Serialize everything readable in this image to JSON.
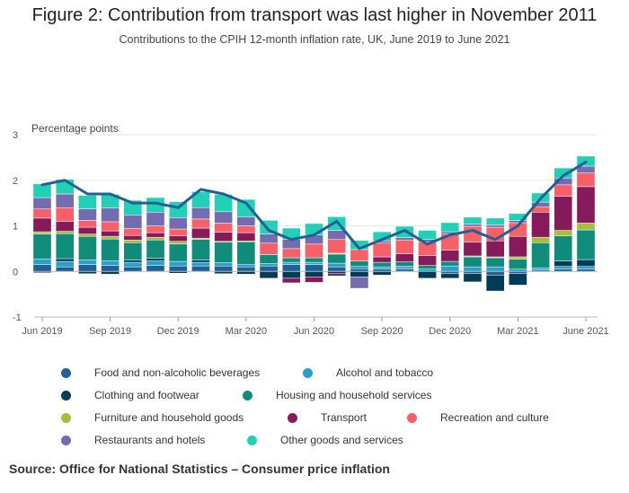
{
  "title": "Figure 2: Contribution from transport was last higher in November 2011",
  "subtitle": "Contributions to the CPIH 12-month inflation rate, UK, June 2019 to June 2021",
  "source": "Source: Office for National Statistics – Consumer price inflation",
  "chart_data": {
    "type": "bar",
    "stacked": true,
    "overlay_line": "CPIH 12-month rate",
    "ylabel": "Percentage points",
    "ylim": [
      -1,
      3
    ],
    "yticks": [
      -1,
      0,
      1,
      2,
      3
    ],
    "categories": [
      "Jun 2019",
      "Jul 2019",
      "Aug 2019",
      "Sep 2019",
      "Oct 2019",
      "Nov 2019",
      "Dec 2019",
      "Jan 2020",
      "Feb 2020",
      "Mar 2020",
      "Apr 2020",
      "May 2020",
      "Jun 2020",
      "Jul 2020",
      "Aug 2020",
      "Sep 2020",
      "Oct 2020",
      "Nov 2020",
      "Dec 2020",
      "Jan 2021",
      "Feb 2021",
      "Mar 2021",
      "Apr 2021",
      "May 2021",
      "Jun 2021"
    ],
    "xtick_labels": [
      "Jun 2019",
      "Sep 2019",
      "Dec 2019",
      "Mar 2020",
      "Jun 2020",
      "Sep 2020",
      "Dec 2020",
      "Mar 2021",
      "June 2021"
    ],
    "xtick_indices": [
      0,
      3,
      6,
      9,
      12,
      15,
      18,
      21,
      24
    ],
    "series": [
      {
        "name": "Food and non-alcoholic beverages",
        "color": "#206095",
        "values": [
          0.15,
          0.1,
          0.15,
          0.13,
          0.1,
          0.13,
          0.12,
          0.12,
          0.12,
          0.1,
          0.12,
          0.15,
          0.15,
          0.1,
          0.06,
          0.05,
          0.05,
          0.0,
          -0.05,
          -0.05,
          -0.08,
          -0.05,
          0.03,
          0.05,
          0.05
        ]
      },
      {
        "name": "Alcohol and tobacco",
        "color": "#27a0cc",
        "values": [
          0.12,
          0.12,
          0.1,
          0.1,
          0.1,
          0.1,
          0.1,
          0.08,
          0.07,
          0.05,
          0.05,
          0.05,
          0.05,
          0.08,
          0.05,
          0.05,
          0.04,
          0.05,
          0.12,
          0.1,
          0.1,
          0.05,
          0.05,
          0.06,
          0.06
        ]
      },
      {
        "name": "Clothing and footwear",
        "color": "#003c57",
        "values": [
          -0.03,
          0.06,
          -0.05,
          -0.06,
          0.05,
          0.06,
          -0.04,
          0.05,
          -0.05,
          -0.06,
          -0.15,
          -0.15,
          -0.12,
          -0.05,
          -0.12,
          -0.08,
          0.02,
          -0.15,
          -0.1,
          -0.18,
          -0.35,
          -0.25,
          0.0,
          0.12,
          0.15
        ]
      },
      {
        "name": "Housing and household services",
        "color": "#118c7b",
        "values": [
          0.55,
          0.55,
          0.52,
          0.48,
          0.38,
          0.4,
          0.38,
          0.45,
          0.45,
          0.5,
          0.2,
          0.1,
          0.1,
          0.2,
          0.12,
          0.1,
          0.1,
          0.08,
          0.1,
          0.22,
          0.2,
          0.22,
          0.55,
          0.55,
          0.65
        ]
      },
      {
        "name": "Furniture and household goods",
        "color": "#a8bd3a",
        "values": [
          0.05,
          0.05,
          0.05,
          0.06,
          0.06,
          0.06,
          0.06,
          0.03,
          0.02,
          0.02,
          0.0,
          0.0,
          0.0,
          0.02,
          0.0,
          0.0,
          0.0,
          0.0,
          0.0,
          0.02,
          0.02,
          0.05,
          0.12,
          0.12,
          0.15
        ]
      },
      {
        "name": "Transport",
        "color": "#871a5b",
        "values": [
          0.3,
          0.22,
          0.15,
          0.12,
          0.1,
          0.1,
          0.12,
          0.22,
          0.2,
          0.18,
          0.0,
          -0.1,
          -0.12,
          -0.05,
          0.0,
          0.12,
          0.18,
          0.22,
          0.25,
          0.3,
          0.35,
          0.45,
          0.55,
          0.75,
          0.8
        ]
      },
      {
        "name": "Recreation and culture",
        "color": "#f66068",
        "values": [
          0.2,
          0.3,
          0.15,
          0.2,
          0.15,
          0.15,
          0.15,
          0.2,
          0.2,
          0.15,
          0.25,
          0.2,
          0.3,
          0.3,
          0.25,
          0.3,
          0.3,
          0.3,
          0.35,
          0.35,
          0.3,
          0.3,
          0.12,
          0.25,
          0.3
        ]
      },
      {
        "name": "Restaurants and hotels",
        "color": "#746cb1",
        "values": [
          0.25,
          0.3,
          0.25,
          0.3,
          0.3,
          0.3,
          0.25,
          0.25,
          0.25,
          0.2,
          0.2,
          0.2,
          0.2,
          0.2,
          -0.25,
          0.05,
          0.05,
          0.05,
          0.05,
          0.05,
          0.05,
          0.05,
          0.1,
          0.15,
          0.15
        ]
      },
      {
        "name": "Other goods and services",
        "color": "#22d0b6",
        "values": [
          0.3,
          0.32,
          0.3,
          0.3,
          0.32,
          0.32,
          0.35,
          0.35,
          0.38,
          0.38,
          0.3,
          0.25,
          0.25,
          0.3,
          0.2,
          0.2,
          0.25,
          0.2,
          0.2,
          0.15,
          0.15,
          0.15,
          0.2,
          0.22,
          0.22
        ]
      }
    ],
    "line": {
      "name": "CPIH",
      "color": "#206095",
      "values": [
        1.9,
        2.0,
        1.7,
        1.7,
        1.5,
        1.5,
        1.4,
        1.8,
        1.7,
        1.5,
        0.9,
        0.7,
        0.8,
        1.1,
        0.5,
        0.7,
        0.9,
        0.6,
        0.8,
        0.9,
        0.7,
        1.0,
        1.6,
        2.1,
        2.4
      ]
    }
  }
}
